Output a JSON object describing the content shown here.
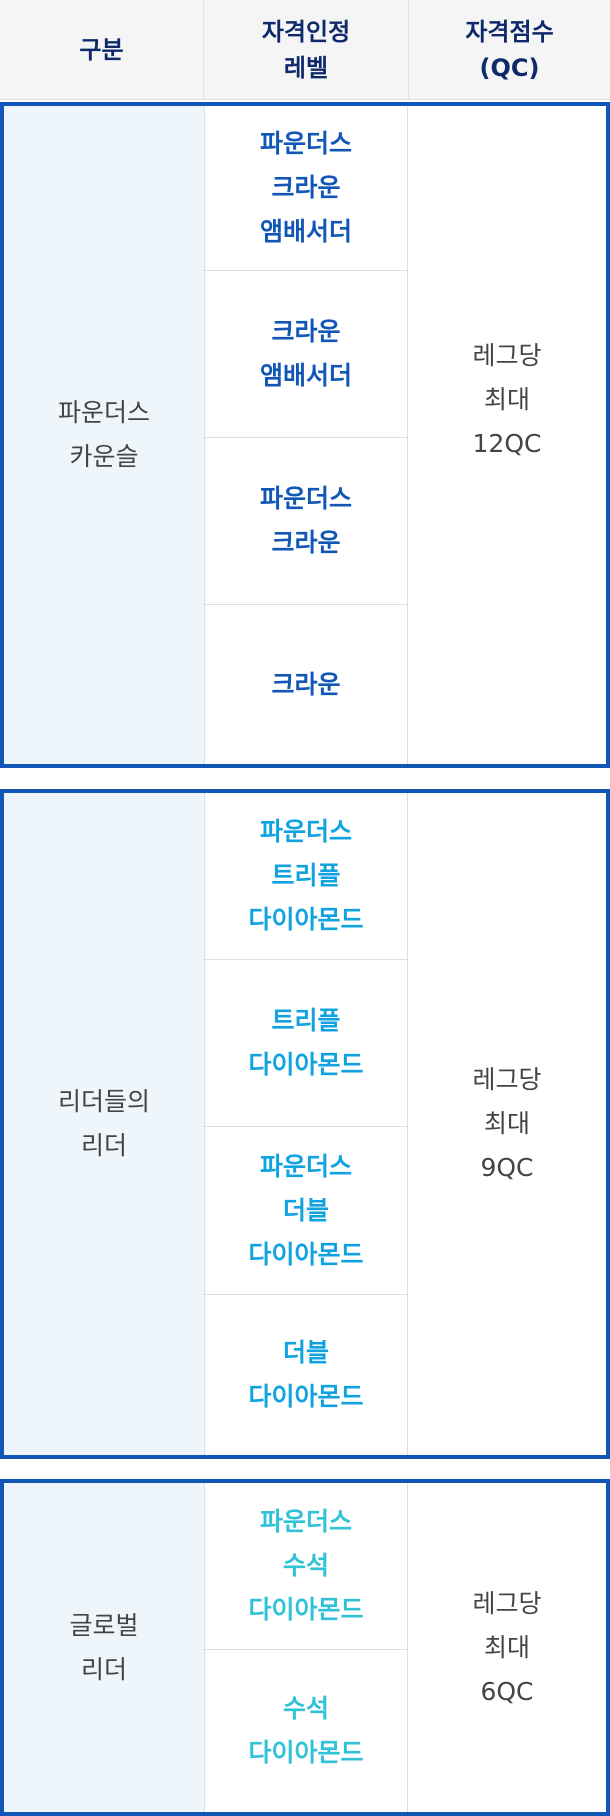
{
  "header": {
    "col1": "구분",
    "col2": "자격인정\n레벨",
    "col3": "자격점수\n(QC)"
  },
  "groups": [
    {
      "category": "파운더스\n카운슬",
      "score": "레그당\n최대\n12QC",
      "level_color": "#1257b6",
      "levels": [
        "파운더스\n크라운\n앰배서더",
        "크라운\n앰배서더",
        "파운더스\n크라운",
        "크라운"
      ]
    },
    {
      "category": "리더들의\n리더",
      "score": "레그당\n최대\n9QC",
      "level_color": "#10a3e0",
      "levels": [
        "파운더스\n트리플\n다이아몬드",
        "트리플\n다이아몬드",
        "파운더스\n더블\n다이아몬드",
        "더블\n다이아몬드"
      ]
    },
    {
      "category": "글로벌\n리더",
      "score": "레그당\n최대\n6QC",
      "level_color": "#30c2d6",
      "levels": [
        "파운더스\n수석\n다이아몬드",
        "수석\n다이아몬드"
      ]
    }
  ],
  "colors": {
    "border": "#1257b6",
    "header_text": "#0f2a6b",
    "category_bg": "#eff6fb"
  }
}
